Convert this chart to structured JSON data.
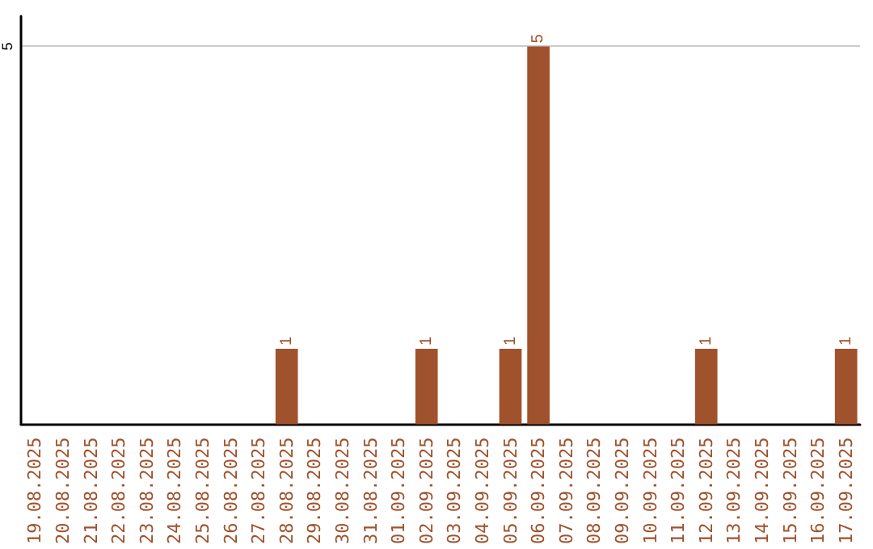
{
  "chart_data": {
    "type": "bar",
    "categories": [
      "19.08.2025",
      "20.08.2025",
      "21.08.2025",
      "22.08.2025",
      "23.08.2025",
      "24.08.2025",
      "25.08.2025",
      "26.08.2025",
      "27.08.2025",
      "28.08.2025",
      "29.08.2025",
      "30.08.2025",
      "31.08.2025",
      "01.09.2025",
      "02.09.2025",
      "03.09.2025",
      "04.09.2025",
      "05.09.2025",
      "06.09.2025",
      "07.09.2025",
      "08.09.2025",
      "09.09.2025",
      "10.09.2025",
      "11.09.2025",
      "12.09.2025",
      "13.09.2025",
      "14.09.2025",
      "15.09.2025",
      "16.09.2025",
      "17.09.2025"
    ],
    "values": [
      0,
      0,
      0,
      0,
      0,
      0,
      0,
      0,
      0,
      1,
      0,
      0,
      0,
      0,
      1,
      0,
      0,
      1,
      5,
      0,
      0,
      0,
      0,
      0,
      1,
      0,
      0,
      0,
      0,
      1
    ],
    "value_labels": [
      null,
      null,
      null,
      null,
      null,
      null,
      null,
      null,
      null,
      "1",
      null,
      null,
      null,
      null,
      "1",
      null,
      null,
      "1",
      "5",
      null,
      null,
      null,
      null,
      null,
      "1",
      null,
      null,
      null,
      null,
      "1"
    ],
    "color": "#a0522d",
    "ylim": [
      0,
      5.4
    ],
    "yticks": [
      5
    ],
    "grid": "y"
  }
}
